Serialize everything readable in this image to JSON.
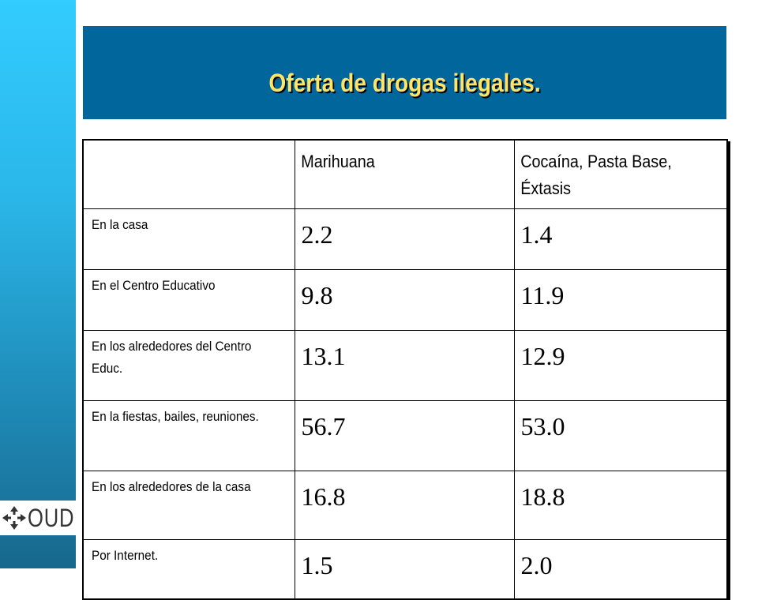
{
  "slide": {
    "title": "Oferta de drogas ilegales."
  },
  "table": {
    "columns": [
      "",
      "Marihuana",
      "Cocaína, Pasta Base, Éxtasis"
    ],
    "rows": [
      {
        "label": "En la casa",
        "marihuana": "2.2",
        "cocaina": "1.4"
      },
      {
        "label": "En el Centro Educativo",
        "marihuana": "9.8",
        "cocaina": "11.9"
      },
      {
        "label": "En los alrededores del Centro Educ.",
        "marihuana": "13.1",
        "cocaina": "12.9"
      },
      {
        "label": "En la fiestas, bailes, reuniones.",
        "marihuana": "56.7",
        "cocaina": "53.0"
      },
      {
        "label": "En los alrededores de la casa",
        "marihuana": "16.8",
        "cocaina": "18.8"
      },
      {
        "label": "Por Internet.",
        "marihuana": "1.5",
        "cocaina": "2.0"
      }
    ]
  },
  "logo": {
    "text": "OUD",
    "icon": "compass-arrows-icon"
  },
  "colors": {
    "banner": "#00669c",
    "title": "#ffe566",
    "sidebar_top": "#33ccff",
    "sidebar_bottom": "#17688c"
  }
}
